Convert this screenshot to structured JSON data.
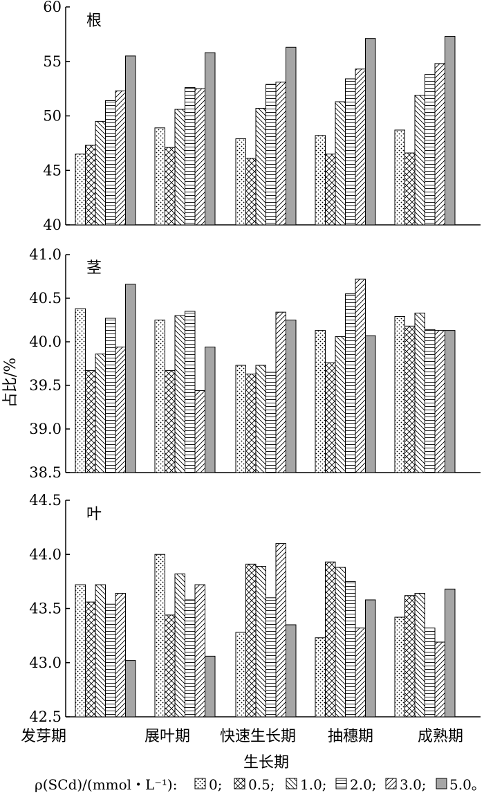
{
  "chart_data": {
    "type": "bar",
    "ylabel": "占比/%",
    "xlabel": "生长期",
    "categories": [
      "发芽期",
      "展叶期",
      "快速生长期",
      "抽穗期",
      "成熟期"
    ],
    "legend": {
      "prefix": "ρ(SCd)/(mmol・L⁻¹):",
      "entries": [
        "0;",
        "0.5;",
        "1.0;",
        "2.0;",
        "3.0;",
        "5.0。"
      ]
    },
    "series_names": [
      "0",
      "0.5",
      "1.0",
      "2.0",
      "3.0",
      "5.0"
    ],
    "panels": [
      {
        "label": "根",
        "ylim": [
          40,
          60
        ],
        "yticks": [
          40,
          45,
          50,
          55,
          60
        ],
        "tick_labels": [
          "40",
          "45",
          "50",
          "55",
          "60"
        ],
        "values": [
          [
            46.5,
            47.3,
            49.5,
            51.4,
            52.3,
            55.5
          ],
          [
            48.9,
            47.1,
            50.6,
            52.6,
            52.5,
            55.8
          ],
          [
            47.9,
            46.1,
            50.7,
            52.9,
            53.1,
            56.3
          ],
          [
            48.2,
            46.5,
            51.3,
            53.4,
            54.3,
            57.1
          ],
          [
            48.7,
            46.6,
            51.9,
            53.8,
            54.8,
            57.3
          ]
        ]
      },
      {
        "label": "茎",
        "ylim": [
          38.5,
          41.0
        ],
        "yticks": [
          38.5,
          39.0,
          39.5,
          40.0,
          40.5,
          41.0
        ],
        "tick_labels": [
          "38.5",
          "39.0",
          "39.5",
          "40.0",
          "40.5",
          "41.0"
        ],
        "values": [
          [
            40.38,
            39.67,
            39.86,
            40.27,
            39.94,
            40.66
          ],
          [
            40.25,
            39.67,
            40.3,
            40.35,
            39.44,
            39.94
          ],
          [
            39.73,
            39.63,
            39.73,
            39.65,
            40.34,
            40.25
          ],
          [
            40.13,
            39.76,
            40.06,
            40.55,
            40.72,
            40.07
          ],
          [
            40.29,
            40.18,
            40.33,
            40.14,
            40.13,
            40.13
          ]
        ]
      },
      {
        "label": "叶",
        "ylim": [
          42.5,
          44.5
        ],
        "yticks": [
          42.5,
          43.0,
          43.5,
          44.0,
          44.5
        ],
        "tick_labels": [
          "42.5",
          "43.0",
          "43.5",
          "44.0",
          "44.5"
        ],
        "values": [
          [
            43.72,
            43.56,
            43.72,
            43.54,
            43.64,
            43.02
          ],
          [
            44.0,
            43.44,
            43.82,
            43.58,
            43.72,
            43.06
          ],
          [
            43.28,
            43.91,
            43.89,
            43.6,
            44.1,
            43.35
          ],
          [
            43.23,
            43.93,
            43.88,
            43.75,
            43.32,
            43.58
          ],
          [
            43.42,
            43.62,
            43.64,
            43.32,
            43.19,
            43.68
          ]
        ]
      }
    ]
  }
}
